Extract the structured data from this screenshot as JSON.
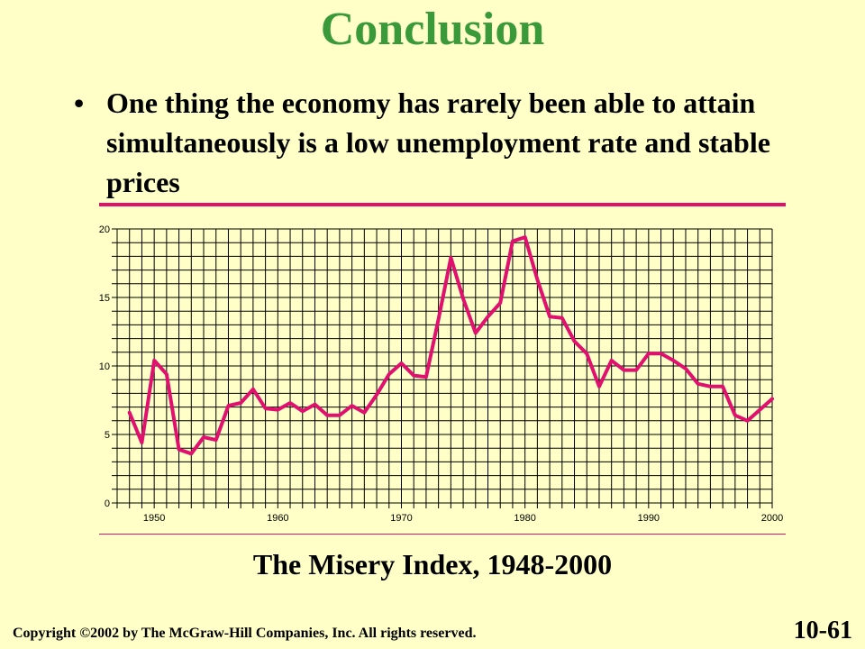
{
  "slide": {
    "title": "Conclusion",
    "bullet_marker": "•",
    "bullet_text": "One thing the economy has rarely been able to attain simultaneously is a low unemployment rate and stable prices",
    "caption": "The Misery Index, 1948-2000",
    "copyright": "Copyright ©2002 by The McGraw-Hill Companies, Inc.  All rights reserved.",
    "slide_number": "10-61"
  },
  "colors": {
    "title": "#3a9a3a",
    "line": "#e0106e",
    "background": "#ffffc8",
    "grid": "#000000"
  },
  "chart_data": {
    "type": "line",
    "title": "The Misery Index, 1948-2000",
    "xlabel": "",
    "ylabel": "",
    "xlim": [
      1947,
      2000
    ],
    "ylim": [
      0,
      20
    ],
    "x_ticks": [
      1950,
      1960,
      1970,
      1980,
      1990,
      2000
    ],
    "y_ticks": [
      0,
      5,
      10,
      15,
      20
    ],
    "grid": true,
    "legend": "none",
    "series": [
      {
        "values_x": [
          1948,
          1949,
          1950,
          1951,
          1952,
          1953,
          1954,
          1955,
          1956,
          1957,
          1958,
          1959,
          1960,
          1961,
          1962,
          1963,
          1964,
          1965,
          1966,
          1967,
          1968,
          1969,
          1970,
          1971,
          1972,
          1973,
          1974,
          1975,
          1976,
          1977,
          1978,
          1979,
          1980,
          1981,
          1982,
          1983,
          1984,
          1985,
          1986,
          1987,
          1988,
          1989,
          1990,
          1991,
          1992,
          1993,
          1994,
          1995,
          1996,
          1997,
          1998,
          1999,
          2000
        ],
        "values_y": [
          6.6,
          4.4,
          10.4,
          9.4,
          3.9,
          3.6,
          4.8,
          4.6,
          7.1,
          7.3,
          8.3,
          6.9,
          6.8,
          7.3,
          6.7,
          7.2,
          6.4,
          6.4,
          7.1,
          6.6,
          7.9,
          9.4,
          10.2,
          9.3,
          9.2,
          13.4,
          17.9,
          14.9,
          12.4,
          13.6,
          14.6,
          19.1,
          19.4,
          16.3,
          13.6,
          13.5,
          11.8,
          10.9,
          8.5,
          10.4,
          9.7,
          9.7,
          10.9,
          10.9,
          10.4,
          9.8,
          8.7,
          8.5,
          8.5,
          6.4,
          6.0,
          6.8,
          7.6
        ]
      }
    ]
  }
}
